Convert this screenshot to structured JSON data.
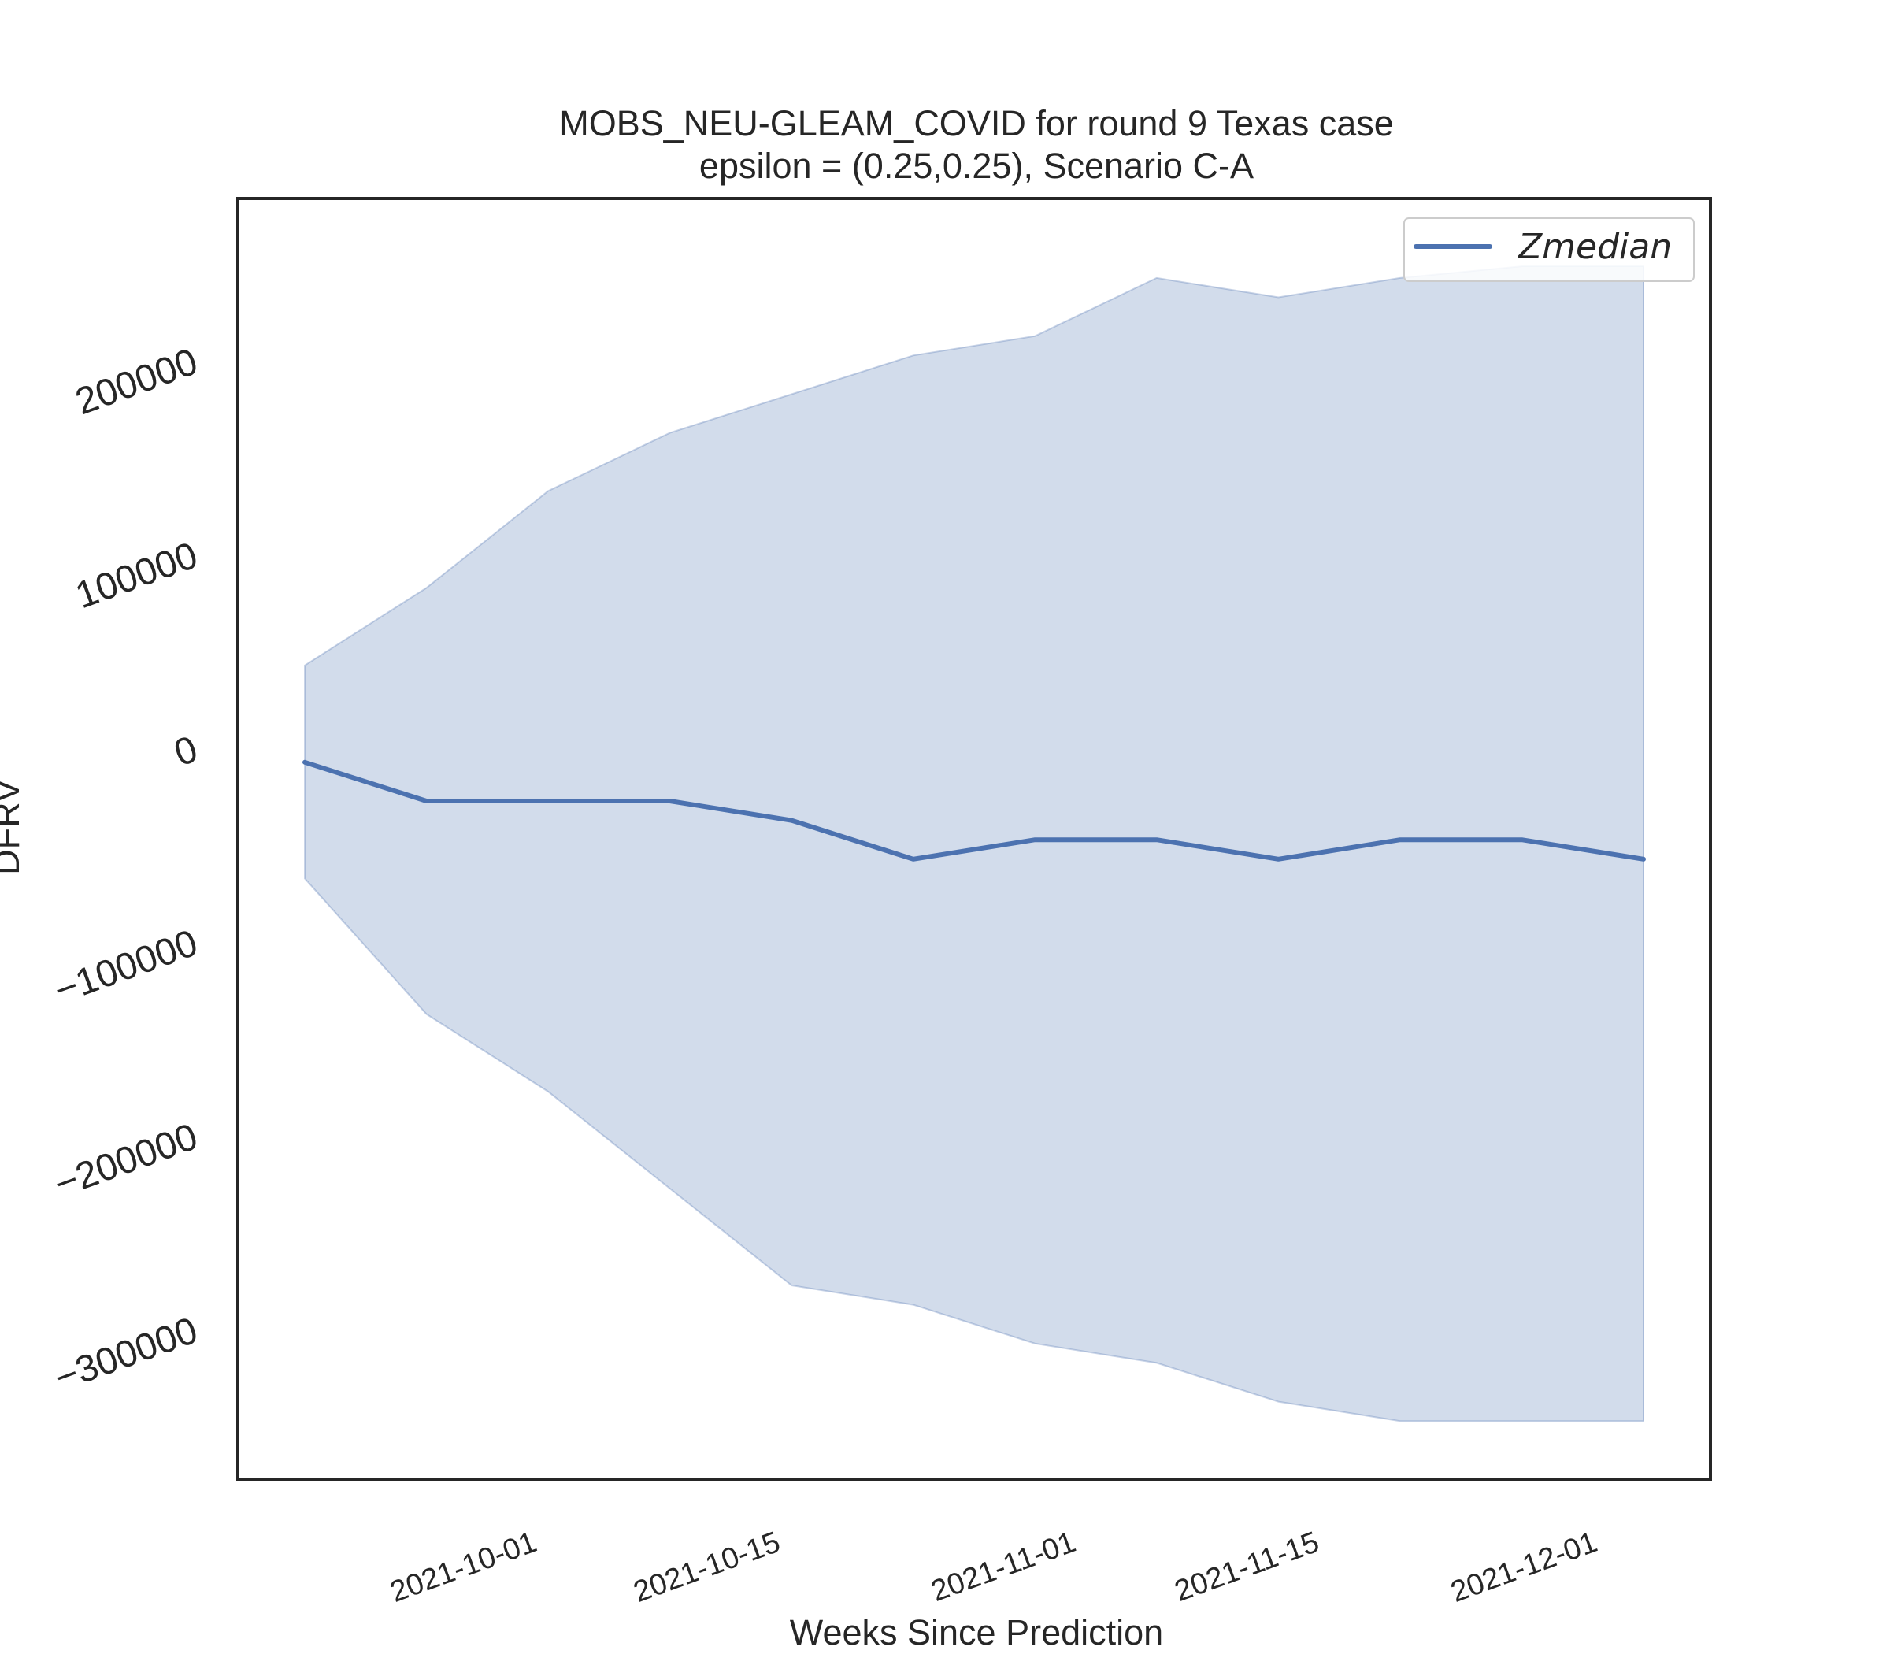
{
  "chart_data": {
    "type": "area",
    "title": "MOBS_NEU-GLEAM_COVID for round 9 Texas  case",
    "subtitle": "epsilon = (0.25,0.25), Scenario C-A",
    "xlabel": "Weeks Since Prediction",
    "ylabel": "DFRV",
    "x": [
      "2021-09-18",
      "2021-09-25",
      "2021-10-02",
      "2021-10-09",
      "2021-10-16",
      "2021-10-23",
      "2021-10-30",
      "2021-11-06",
      "2021-11-13",
      "2021-11-20",
      "2021-11-27",
      "2021-12-04"
    ],
    "x_ticks": [
      "2021-10-01",
      "2021-10-15",
      "2021-11-01",
      "2021-11-15",
      "2021-12-01"
    ],
    "y_ticks": [
      200000,
      100000,
      0,
      -100000,
      -200000,
      -300000
    ],
    "y_tick_labels": [
      "200000",
      "100000",
      "0",
      "−100000",
      "−200000",
      "−300000"
    ],
    "ylim": [
      -378000,
      283000
    ],
    "grid": false,
    "legend_position": "top-right",
    "series": [
      {
        "name": "Zmedian",
        "color": "#4c72b0",
        "values": [
          -8000,
          -28000,
          -28000,
          -28000,
          -38000,
          -58000,
          -48000,
          -48000,
          -58000,
          -48000,
          -48000,
          -58000
        ]
      }
    ],
    "band": {
      "color": "#4c72b0",
      "opacity": 0.25,
      "upper": [
        42000,
        82000,
        132000,
        162000,
        182000,
        202000,
        212000,
        242000,
        232000,
        242000,
        248000,
        248000
      ],
      "lower": [
        -68000,
        -138000,
        -178000,
        -228000,
        -278000,
        -288000,
        -308000,
        -318000,
        -338000,
        -348000,
        -348000,
        -348000
      ]
    }
  }
}
